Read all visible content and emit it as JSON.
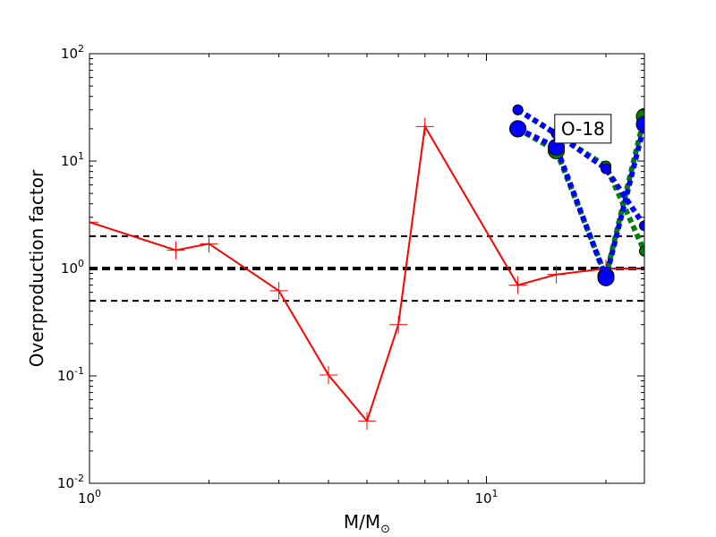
{
  "chart_data": {
    "type": "line",
    "title": "",
    "xlabel": "M/M",
    "xlabel_subscript": "⊙",
    "ylabel": "Overproduction factor",
    "xscale": "log",
    "yscale": "log",
    "xlim": [
      1,
      25
    ],
    "ylim": [
      0.01,
      100
    ],
    "x_ticks": [
      {
        "value": 1,
        "base": "10",
        "exp": "0"
      },
      {
        "value": 10,
        "base": "10",
        "exp": "1"
      }
    ],
    "y_ticks": [
      {
        "value": 0.01,
        "base": "10",
        "exp": "-2"
      },
      {
        "value": 0.1,
        "base": "10",
        "exp": "-1"
      },
      {
        "value": 1,
        "base": "10",
        "exp": "0"
      },
      {
        "value": 10,
        "base": "10",
        "exp": "1"
      },
      {
        "value": 100,
        "base": "10",
        "exp": "2"
      }
    ],
    "reference_lines": [
      {
        "y": 2,
        "style": "dashed",
        "color": "#000000",
        "width": 2
      },
      {
        "y": 1,
        "style": "dashed",
        "color": "#000000",
        "width": 4
      },
      {
        "y": 0.5,
        "style": "dashed",
        "color": "#000000",
        "width": 2
      }
    ],
    "series": [
      {
        "color": "#ff0000",
        "style": "solid",
        "marker": "plus",
        "points": [
          [
            1.0,
            2.7
          ],
          [
            1.65,
            1.48
          ],
          [
            2.0,
            1.7
          ],
          [
            3.0,
            0.62
          ],
          [
            4.0,
            0.102
          ],
          [
            5.0,
            0.038
          ],
          [
            6.0,
            0.3
          ],
          [
            7.0,
            21.0
          ],
          [
            12.0,
            0.7
          ],
          [
            15.0,
            0.88
          ],
          [
            20.0,
            1.0
          ],
          [
            25.0,
            1.0
          ]
        ]
      },
      {
        "color": "#008000",
        "style": "dotted",
        "marker": "circle-small",
        "points": [
          [
            12.0,
            30.0
          ],
          [
            20.0,
            9.0
          ],
          [
            25.0,
            1.45
          ]
        ]
      },
      {
        "color": "#008000",
        "style": "dotted",
        "marker": "circle-large",
        "points": [
          [
            12.0,
            20.0
          ],
          [
            15.0,
            12.5
          ],
          [
            20.0,
            0.85
          ],
          [
            25.0,
            26.0
          ]
        ]
      },
      {
        "color": "#0000ff",
        "style": "dotted",
        "marker": "circle-small",
        "points": [
          [
            12.0,
            30.0
          ],
          [
            15.0,
            18.0
          ],
          [
            20.0,
            8.5
          ],
          [
            25.0,
            2.5
          ]
        ]
      },
      {
        "color": "#0000ff",
        "style": "dotted",
        "marker": "circle-large",
        "points": [
          [
            12.0,
            20.0
          ],
          [
            15.0,
            13.5
          ],
          [
            20.0,
            0.82
          ],
          [
            25.0,
            22.0
          ]
        ]
      }
    ],
    "annotations": [
      {
        "text": "O-18",
        "x": 17.5,
        "y": 20.0,
        "boxed": true
      }
    ]
  }
}
